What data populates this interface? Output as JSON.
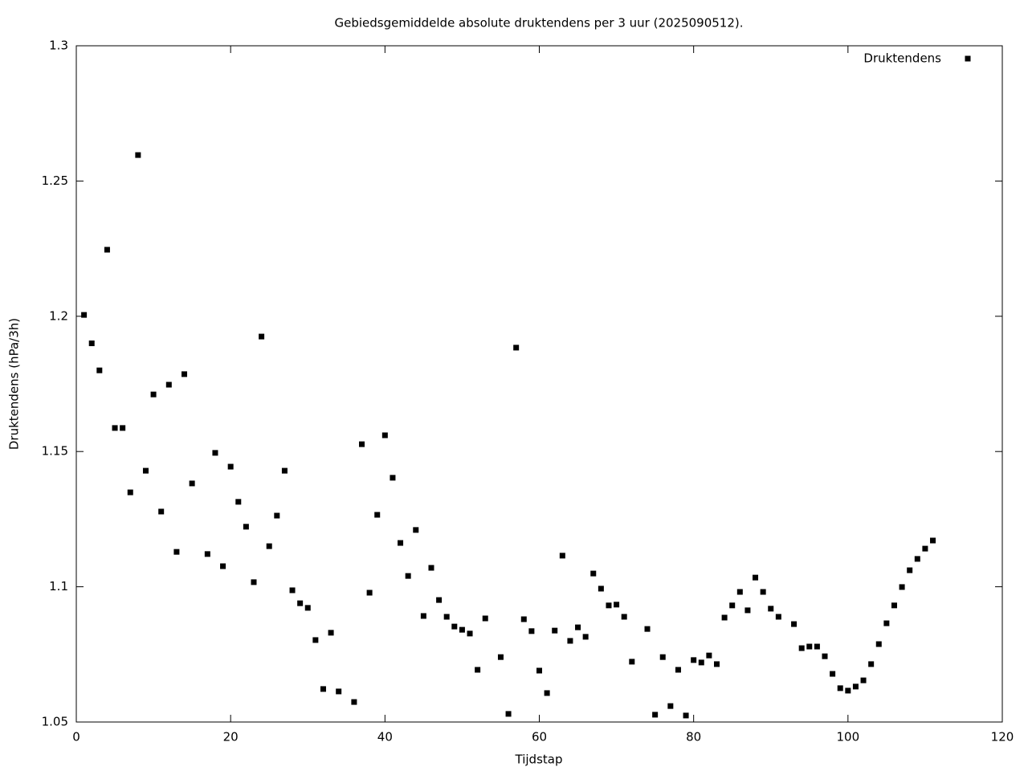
{
  "chart_data": {
    "type": "scatter",
    "title": "Gebiedsgemiddelde absolute druktendens per 3 uur (2025090512).",
    "x_label": "Tijdstap",
    "y_label": "Druktendens (hPa/3h)",
    "legend_position": "top-right",
    "grid": false,
    "xlim": [
      0,
      120
    ],
    "xticks": [
      0,
      20,
      40,
      60,
      80,
      100,
      120
    ],
    "ylim": [
      1.05,
      1.3
    ],
    "yticks": [
      1.05,
      1.1,
      1.15,
      1.2,
      1.25,
      1.3
    ],
    "series": [
      {
        "name": "Druktendens",
        "color": "#000000",
        "x": [
          1,
          2,
          3,
          4,
          5,
          6,
          7,
          8,
          9,
          10,
          11,
          12,
          13,
          14,
          15,
          17,
          18,
          19,
          20,
          21,
          22,
          23,
          24,
          25,
          26,
          27,
          28,
          29,
          30,
          31,
          32,
          33,
          34,
          36,
          37,
          38,
          39,
          40,
          41,
          42,
          43,
          44,
          45,
          46,
          47,
          48,
          49,
          50,
          51,
          52,
          53,
          55,
          56,
          57,
          58,
          59,
          60,
          61,
          62,
          63,
          64,
          65,
          66,
          67,
          68,
          69,
          70,
          71,
          72,
          74,
          75,
          76,
          77,
          78,
          79,
          80,
          81,
          82,
          83,
          84,
          85,
          86,
          87,
          88,
          89,
          90,
          91,
          93,
          94,
          95,
          96,
          97,
          98,
          99,
          100,
          101,
          102,
          103,
          104,
          105,
          106,
          107,
          108,
          109,
          110,
          111
        ],
        "values": [
          1.2005,
          1.19,
          1.18,
          1.2246,
          1.1587,
          1.1587,
          1.1349,
          1.2596,
          1.1429,
          1.1711,
          1.1278,
          1.1747,
          1.1129,
          1.1786,
          1.1382,
          1.1121,
          1.1495,
          1.1076,
          1.1444,
          1.1314,
          1.1222,
          1.1017,
          1.1925,
          1.115,
          1.1263,
          1.1429,
          1.0987,
          1.0939,
          1.0922,
          1.0803,
          1.0622,
          1.083,
          1.0613,
          1.0574,
          1.1527,
          1.0978,
          1.1266,
          1.156,
          1.1403,
          1.1162,
          1.104,
          1.121,
          1.0892,
          1.107,
          1.0951,
          1.0889,
          1.0853,
          1.0841,
          1.0827,
          1.0693,
          1.0883,
          1.074,
          1.053,
          1.1884,
          1.088,
          1.0836,
          1.069,
          1.0607,
          1.0838,
          1.1115,
          1.08,
          1.085,
          1.0815,
          1.1049,
          1.0993,
          1.0931,
          1.0934,
          1.0889,
          1.0723,
          1.0844,
          1.0527,
          1.074,
          1.0559,
          1.0693,
          1.0524,
          1.0729,
          1.072,
          1.0746,
          1.0714,
          1.0886,
          1.0931,
          1.0981,
          1.0913,
          1.1034,
          1.0981,
          1.0919,
          1.0889,
          1.0862,
          1.0773,
          1.0779,
          1.0779,
          1.0743,
          1.0678,
          1.0625,
          1.0616,
          1.0631,
          1.0654,
          1.0714,
          1.0788,
          1.0865,
          1.0931,
          1.0999,
          1.1061,
          1.1103,
          1.1141,
          1.1171
        ]
      }
    ]
  }
}
